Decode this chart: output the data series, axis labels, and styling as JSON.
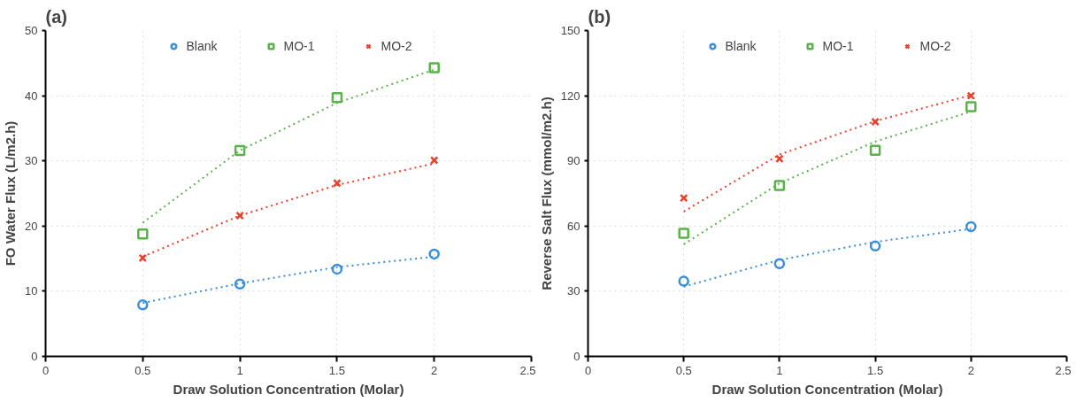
{
  "chart_data": [
    {
      "type": "scatter",
      "title": "(a)",
      "xlabel": "Draw Solution Concentration (Molar)",
      "ylabel": "FO Water Flux (L/m2.h)",
      "x": [
        0.5,
        1,
        1.5,
        2
      ],
      "xlim": [
        0,
        2.5
      ],
      "xticks": [
        0,
        0.5,
        1,
        1.5,
        2,
        2.5
      ],
      "ylim": [
        0,
        50
      ],
      "yticks": [
        0,
        10,
        20,
        30,
        40,
        50
      ],
      "grid": true,
      "legend": "top",
      "series": [
        {
          "name": "Blank",
          "color": "#3b8ed8",
          "marker": "circle",
          "values": [
            7.9,
            11.1,
            13.4,
            15.7
          ]
        },
        {
          "name": "MO-1",
          "color": "#5ab34a",
          "marker": "square",
          "values": [
            18.8,
            31.6,
            39.7,
            44.3
          ]
        },
        {
          "name": "MO-2",
          "color": "#e8402a",
          "marker": "cross",
          "values": [
            15.1,
            21.6,
            26.6,
            30.1
          ]
        },
        {
          "type": "line",
          "line_style": "dotted",
          "color": "#3b8ed8",
          "x": [
            0.5,
            1,
            1.5,
            2
          ],
          "values": [
            8.2,
            11.2,
            13.7,
            15.3
          ]
        },
        {
          "type": "line",
          "line_style": "dotted",
          "color": "#5ab34a",
          "x": [
            0.5,
            1,
            1.5,
            2
          ],
          "values": [
            20.5,
            31.6,
            38.9,
            44.0
          ]
        },
        {
          "type": "line",
          "line_style": "dotted",
          "color": "#e8402a",
          "x": [
            0.5,
            1,
            1.5,
            2
          ],
          "values": [
            15.3,
            21.6,
            26.3,
            29.6
          ]
        }
      ]
    },
    {
      "type": "scatter",
      "title": "(b)",
      "xlabel": "Draw Solution Concentration (Molar)",
      "ylabel": "Reverse Salt Flux (mmol/m2.h)",
      "x": [
        0.5,
        1,
        1.5,
        2
      ],
      "xlim": [
        0,
        2.5
      ],
      "xticks": [
        0,
        0.5,
        1,
        1.5,
        2,
        2.5
      ],
      "ylim": [
        0,
        150
      ],
      "yticks": [
        0,
        30,
        60,
        90,
        120,
        150
      ],
      "grid": true,
      "legend": "top",
      "series": [
        {
          "name": "Blank",
          "color": "#3b8ed8",
          "marker": "circle",
          "values": [
            34.6,
            42.7,
            50.8,
            59.7
          ]
        },
        {
          "name": "MO-1",
          "color": "#5ab34a",
          "marker": "square",
          "values": [
            56.7,
            78.7,
            94.9,
            114.9
          ]
        },
        {
          "name": "MO-2",
          "color": "#e8402a",
          "marker": "cross",
          "values": [
            72.9,
            91.0,
            108.0,
            120.0
          ]
        },
        {
          "type": "line",
          "line_style": "dotted",
          "color": "#3b8ed8",
          "x": [
            0.5,
            1,
            1.5,
            2
          ],
          "values": [
            32.1,
            44.4,
            52.7,
            58.7
          ]
        },
        {
          "type": "line",
          "line_style": "dotted",
          "color": "#5ab34a",
          "x": [
            0.5,
            1,
            1.5,
            2
          ],
          "values": [
            51.6,
            79.7,
            98.9,
            112.7
          ]
        },
        {
          "type": "line",
          "line_style": "dotted",
          "color": "#e8402a",
          "x": [
            0.5,
            1,
            1.5,
            2
          ],
          "values": [
            66.7,
            92.9,
            108.3,
            120.3
          ]
        }
      ]
    }
  ]
}
